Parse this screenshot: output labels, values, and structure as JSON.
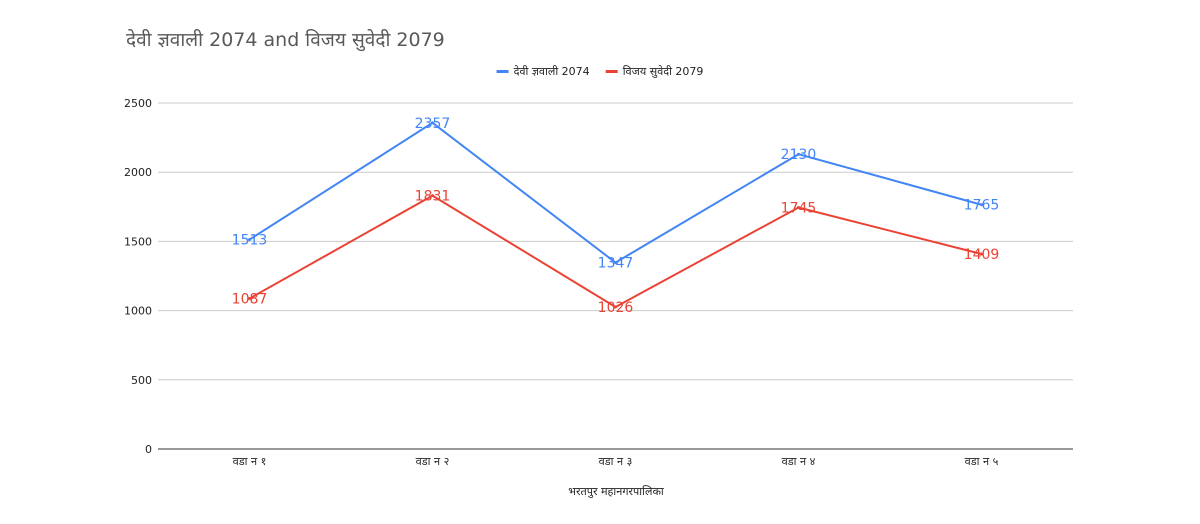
{
  "chart_data": {
    "type": "line",
    "title": "देवी ज्ञवाली 2074 and विजय सुवेदी 2079",
    "xlabel": "भरतपुर महानगरपालिका",
    "ylabel": "",
    "categories": [
      "वडा न १",
      "वडा न २",
      "वडा न ३",
      "वडा न ४",
      "वडा न ५"
    ],
    "series": [
      {
        "name": "देवी ज्ञवाली 2074",
        "values": [
          1513,
          2357,
          1347,
          2130,
          1765
        ],
        "color": "#4285f4"
      },
      {
        "name": "विजय सुवेदी 2079",
        "values": [
          1087,
          1831,
          1026,
          1745,
          1409
        ],
        "color": "#ea4335"
      }
    ],
    "ylim": [
      0,
      2500
    ],
    "yticks": [
      0,
      500,
      1000,
      1500,
      2000,
      2500
    ],
    "grid": true,
    "legend": "top-center",
    "data_labels": true
  }
}
